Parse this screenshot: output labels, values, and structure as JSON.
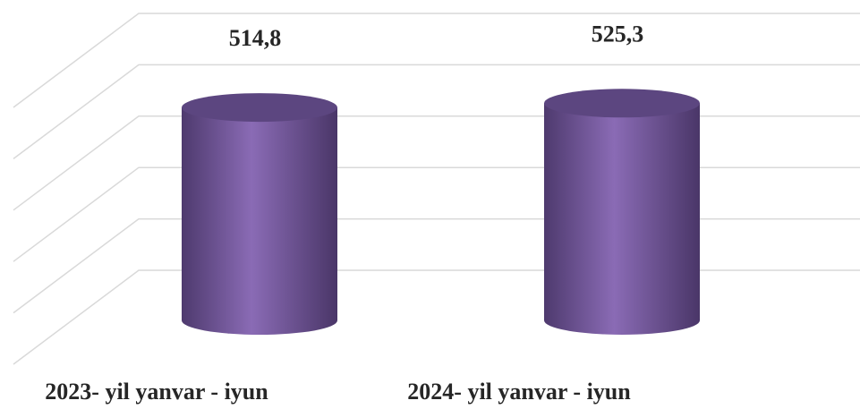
{
  "chart_data": {
    "type": "bar",
    "categories": [
      "2023- yil yanvar - iyun",
      "2024- yil yanvar - iyun"
    ],
    "values": [
      514.8,
      525.3
    ],
    "value_labels": [
      "514,8",
      "525,3"
    ],
    "color": "#7b5ea7",
    "ylim": [
      0,
      625
    ],
    "yticks": [
      0,
      125,
      250,
      375,
      500,
      625
    ],
    "grid": true
  }
}
